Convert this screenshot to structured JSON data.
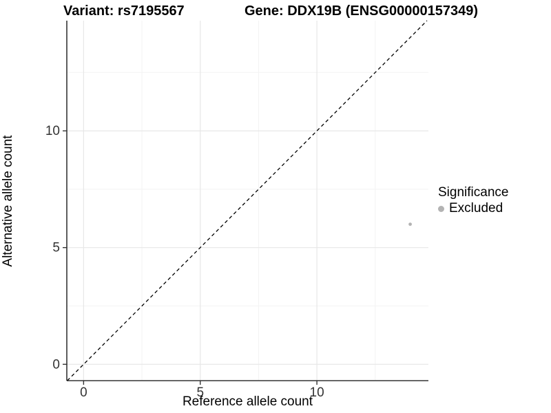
{
  "chart_data": {
    "type": "scatter",
    "title_left": "Variant: rs7195567",
    "title_right": "Gene: DDX19B (ENSG00000157349)",
    "xlabel": "Reference allele count",
    "ylabel": "Alternative allele count",
    "xlim": [
      -0.72,
      14.78
    ],
    "ylim": [
      -0.7,
      14.72
    ],
    "x_major_ticks": [
      0,
      5,
      10
    ],
    "y_major_ticks": [
      0,
      5,
      10
    ],
    "x_minor_gridlines": [
      2.5,
      7.5,
      12.5
    ],
    "y_minor_gridlines": [
      2.5,
      7.5,
      12.5
    ],
    "grid": true,
    "identity_line": {
      "style": "dashed",
      "equation": "y = x"
    },
    "series": [
      {
        "name": "Excluded",
        "color": "#b3b3b3",
        "points": [
          {
            "x": 14,
            "y": 6
          }
        ]
      }
    ],
    "legend": {
      "title": "Significance",
      "position": "right",
      "items": [
        {
          "label": "Excluded",
          "color": "#b3b3b3"
        }
      ]
    },
    "colors": {
      "background": "#ffffff",
      "axis": "#333333",
      "tick_label": "#333333",
      "grid_major": "#e7e7e7",
      "grid_minor": "#f3f3f3",
      "identity_line": "#000000"
    }
  }
}
